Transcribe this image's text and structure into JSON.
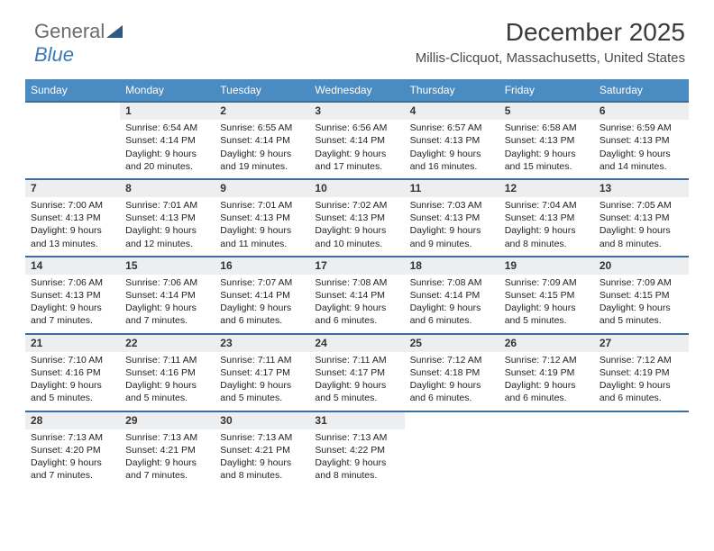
{
  "brand": {
    "name_part1": "General",
    "name_part2": "Blue"
  },
  "header": {
    "title": "December 2025",
    "subtitle": "Millis-Clicquot, Massachusetts, United States"
  },
  "colors": {
    "header_bg": "#4a8bc2",
    "header_text": "#ffffff",
    "daynum_bg": "#eceef0",
    "row_divider": "#3d6d9a",
    "body_text": "#222222",
    "logo_gray": "#6b6b6b",
    "logo_blue": "#3a7ab8",
    "page_bg": "#ffffff"
  },
  "typography": {
    "title_fontsize": 28,
    "subtitle_fontsize": 15,
    "dayheader_fontsize": 12,
    "daynum_fontsize": 12,
    "cell_fontsize": 10.5,
    "logo_fontsize": 22
  },
  "days_of_week": [
    "Sunday",
    "Monday",
    "Tuesday",
    "Wednesday",
    "Thursday",
    "Friday",
    "Saturday"
  ],
  "weeks": [
    [
      null,
      {
        "n": "1",
        "sunrise": "Sunrise: 6:54 AM",
        "sunset": "Sunset: 4:14 PM",
        "daylight": "Daylight: 9 hours and 20 minutes."
      },
      {
        "n": "2",
        "sunrise": "Sunrise: 6:55 AM",
        "sunset": "Sunset: 4:14 PM",
        "daylight": "Daylight: 9 hours and 19 minutes."
      },
      {
        "n": "3",
        "sunrise": "Sunrise: 6:56 AM",
        "sunset": "Sunset: 4:14 PM",
        "daylight": "Daylight: 9 hours and 17 minutes."
      },
      {
        "n": "4",
        "sunrise": "Sunrise: 6:57 AM",
        "sunset": "Sunset: 4:13 PM",
        "daylight": "Daylight: 9 hours and 16 minutes."
      },
      {
        "n": "5",
        "sunrise": "Sunrise: 6:58 AM",
        "sunset": "Sunset: 4:13 PM",
        "daylight": "Daylight: 9 hours and 15 minutes."
      },
      {
        "n": "6",
        "sunrise": "Sunrise: 6:59 AM",
        "sunset": "Sunset: 4:13 PM",
        "daylight": "Daylight: 9 hours and 14 minutes."
      }
    ],
    [
      {
        "n": "7",
        "sunrise": "Sunrise: 7:00 AM",
        "sunset": "Sunset: 4:13 PM",
        "daylight": "Daylight: 9 hours and 13 minutes."
      },
      {
        "n": "8",
        "sunrise": "Sunrise: 7:01 AM",
        "sunset": "Sunset: 4:13 PM",
        "daylight": "Daylight: 9 hours and 12 minutes."
      },
      {
        "n": "9",
        "sunrise": "Sunrise: 7:01 AM",
        "sunset": "Sunset: 4:13 PM",
        "daylight": "Daylight: 9 hours and 11 minutes."
      },
      {
        "n": "10",
        "sunrise": "Sunrise: 7:02 AM",
        "sunset": "Sunset: 4:13 PM",
        "daylight": "Daylight: 9 hours and 10 minutes."
      },
      {
        "n": "11",
        "sunrise": "Sunrise: 7:03 AM",
        "sunset": "Sunset: 4:13 PM",
        "daylight": "Daylight: 9 hours and 9 minutes."
      },
      {
        "n": "12",
        "sunrise": "Sunrise: 7:04 AM",
        "sunset": "Sunset: 4:13 PM",
        "daylight": "Daylight: 9 hours and 8 minutes."
      },
      {
        "n": "13",
        "sunrise": "Sunrise: 7:05 AM",
        "sunset": "Sunset: 4:13 PM",
        "daylight": "Daylight: 9 hours and 8 minutes."
      }
    ],
    [
      {
        "n": "14",
        "sunrise": "Sunrise: 7:06 AM",
        "sunset": "Sunset: 4:13 PM",
        "daylight": "Daylight: 9 hours and 7 minutes."
      },
      {
        "n": "15",
        "sunrise": "Sunrise: 7:06 AM",
        "sunset": "Sunset: 4:14 PM",
        "daylight": "Daylight: 9 hours and 7 minutes."
      },
      {
        "n": "16",
        "sunrise": "Sunrise: 7:07 AM",
        "sunset": "Sunset: 4:14 PM",
        "daylight": "Daylight: 9 hours and 6 minutes."
      },
      {
        "n": "17",
        "sunrise": "Sunrise: 7:08 AM",
        "sunset": "Sunset: 4:14 PM",
        "daylight": "Daylight: 9 hours and 6 minutes."
      },
      {
        "n": "18",
        "sunrise": "Sunrise: 7:08 AM",
        "sunset": "Sunset: 4:14 PM",
        "daylight": "Daylight: 9 hours and 6 minutes."
      },
      {
        "n": "19",
        "sunrise": "Sunrise: 7:09 AM",
        "sunset": "Sunset: 4:15 PM",
        "daylight": "Daylight: 9 hours and 5 minutes."
      },
      {
        "n": "20",
        "sunrise": "Sunrise: 7:09 AM",
        "sunset": "Sunset: 4:15 PM",
        "daylight": "Daylight: 9 hours and 5 minutes."
      }
    ],
    [
      {
        "n": "21",
        "sunrise": "Sunrise: 7:10 AM",
        "sunset": "Sunset: 4:16 PM",
        "daylight": "Daylight: 9 hours and 5 minutes."
      },
      {
        "n": "22",
        "sunrise": "Sunrise: 7:11 AM",
        "sunset": "Sunset: 4:16 PM",
        "daylight": "Daylight: 9 hours and 5 minutes."
      },
      {
        "n": "23",
        "sunrise": "Sunrise: 7:11 AM",
        "sunset": "Sunset: 4:17 PM",
        "daylight": "Daylight: 9 hours and 5 minutes."
      },
      {
        "n": "24",
        "sunrise": "Sunrise: 7:11 AM",
        "sunset": "Sunset: 4:17 PM",
        "daylight": "Daylight: 9 hours and 5 minutes."
      },
      {
        "n": "25",
        "sunrise": "Sunrise: 7:12 AM",
        "sunset": "Sunset: 4:18 PM",
        "daylight": "Daylight: 9 hours and 6 minutes."
      },
      {
        "n": "26",
        "sunrise": "Sunrise: 7:12 AM",
        "sunset": "Sunset: 4:19 PM",
        "daylight": "Daylight: 9 hours and 6 minutes."
      },
      {
        "n": "27",
        "sunrise": "Sunrise: 7:12 AM",
        "sunset": "Sunset: 4:19 PM",
        "daylight": "Daylight: 9 hours and 6 minutes."
      }
    ],
    [
      {
        "n": "28",
        "sunrise": "Sunrise: 7:13 AM",
        "sunset": "Sunset: 4:20 PM",
        "daylight": "Daylight: 9 hours and 7 minutes."
      },
      {
        "n": "29",
        "sunrise": "Sunrise: 7:13 AM",
        "sunset": "Sunset: 4:21 PM",
        "daylight": "Daylight: 9 hours and 7 minutes."
      },
      {
        "n": "30",
        "sunrise": "Sunrise: 7:13 AM",
        "sunset": "Sunset: 4:21 PM",
        "daylight": "Daylight: 9 hours and 8 minutes."
      },
      {
        "n": "31",
        "sunrise": "Sunrise: 7:13 AM",
        "sunset": "Sunset: 4:22 PM",
        "daylight": "Daylight: 9 hours and 8 minutes."
      },
      null,
      null,
      null
    ]
  ]
}
